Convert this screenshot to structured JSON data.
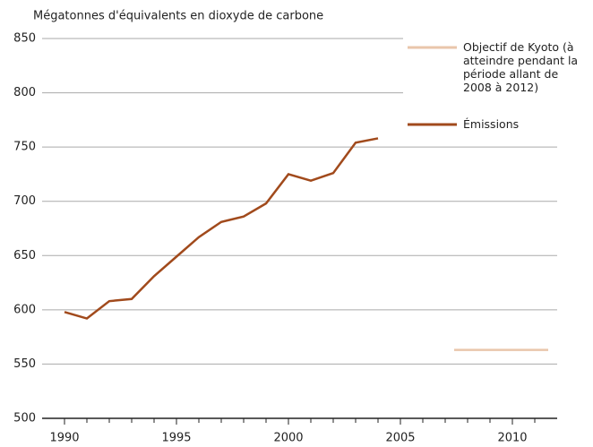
{
  "chart_data": {
    "type": "line",
    "y_axis_label": "Mégatonnes d'équivalents en dioxyde de carbone",
    "xlim": [
      1989,
      2012
    ],
    "ylim": [
      500,
      850
    ],
    "xticks": [
      1990,
      1995,
      2000,
      2005,
      2010
    ],
    "xtick_marks": [
      1990,
      1991,
      1992,
      1993,
      1994,
      1995,
      1996,
      1997,
      1998,
      1999,
      2000,
      2001,
      2002,
      2003,
      2004,
      2005,
      2006,
      2007,
      2008,
      2009,
      2010,
      2011
    ],
    "yticks": [
      500,
      550,
      600,
      650,
      700,
      750,
      800,
      850
    ],
    "grid": true,
    "series": [
      {
        "name": "Objectif de Kyoto (à atteindre pendant la période allant de 2008 à 2012)",
        "color": "#e9c6ab",
        "x": [
          2007.4,
          2011.6
        ],
        "values": [
          563,
          563
        ]
      },
      {
        "name": "Émissions",
        "color": "#a14a1c",
        "x": [
          1990,
          1991,
          1992,
          1993,
          1994,
          1995,
          1996,
          1997,
          1998,
          1999,
          2000,
          2001,
          2002,
          2003,
          2004
        ],
        "values": [
          598,
          592,
          608,
          610,
          631,
          649,
          667,
          681,
          686,
          698,
          725,
          719,
          726,
          754,
          758
        ]
      }
    ]
  }
}
